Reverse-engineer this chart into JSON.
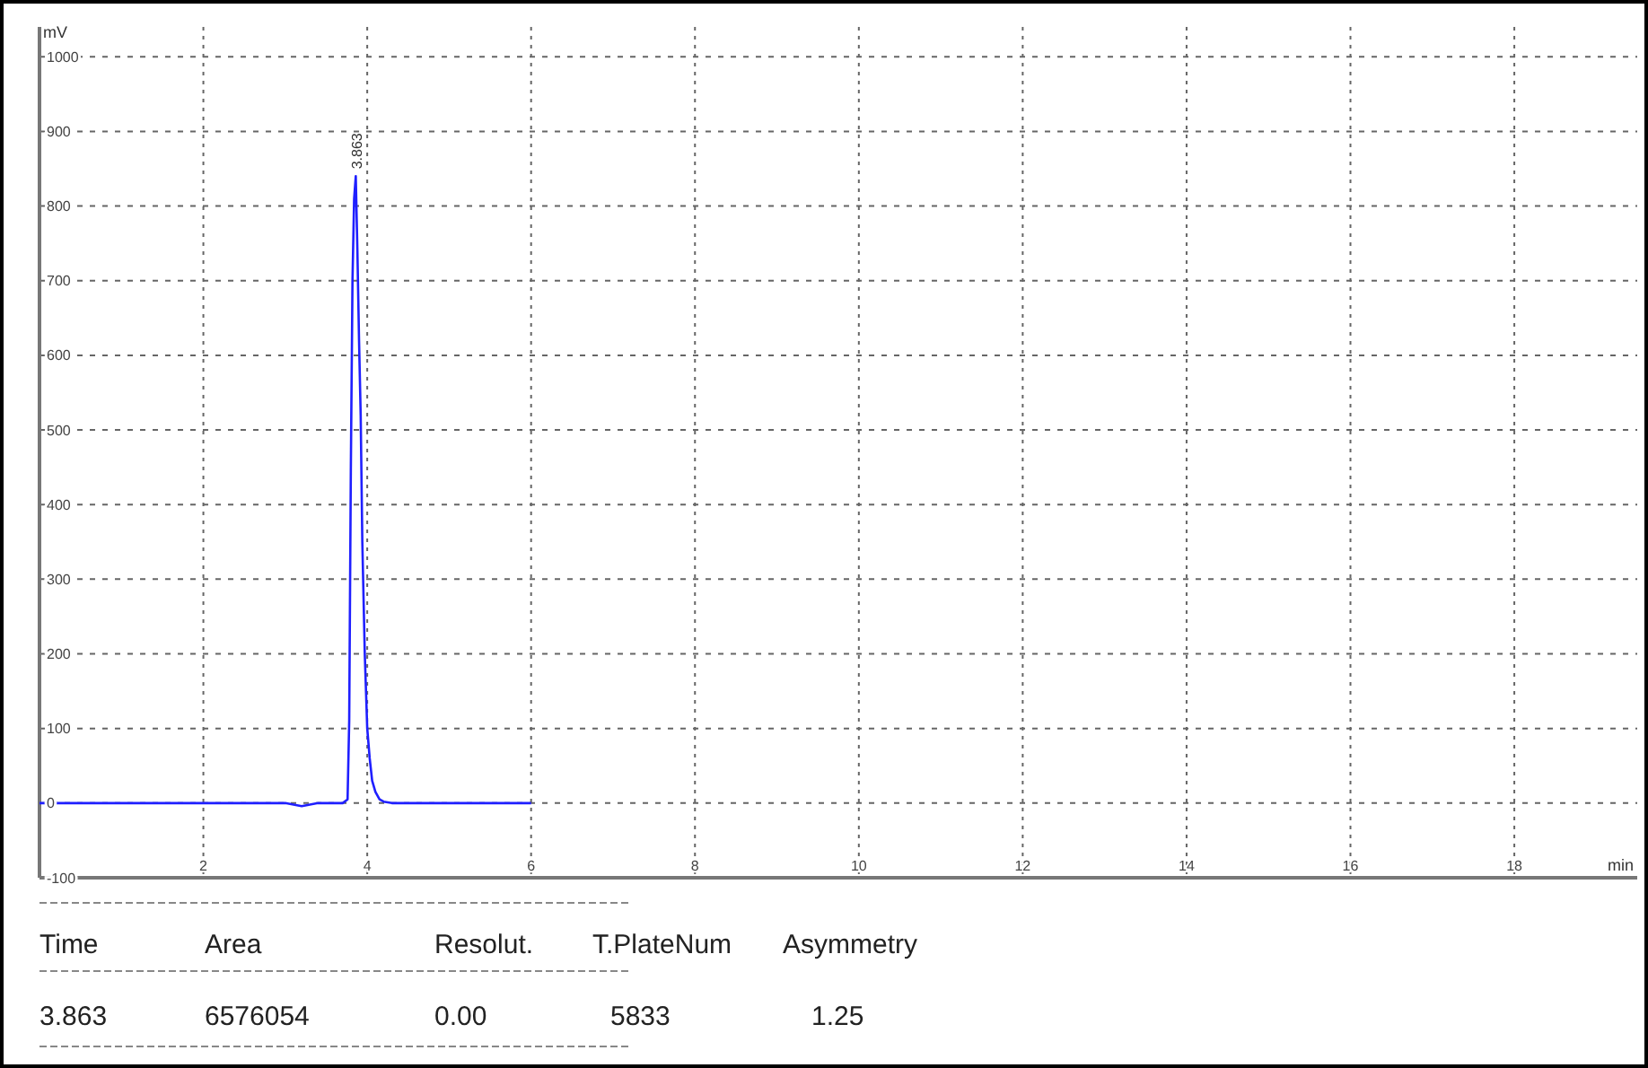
{
  "chart_data": {
    "type": "line",
    "xlabel": "min",
    "ylabel": "mV",
    "x": [
      0,
      1,
      2,
      3,
      3.2,
      3.4,
      3.7,
      3.76,
      3.78,
      3.8,
      3.82,
      3.84,
      3.86,
      3.88,
      3.9,
      3.92,
      3.94,
      3.97,
      4.0,
      4.03,
      4.06,
      4.1,
      4.15,
      4.2,
      4.3,
      5,
      6
    ],
    "series": [
      {
        "color": "#1f1fff",
        "values": [
          0,
          0,
          0,
          0,
          -4,
          0,
          0,
          5,
          110,
          450,
          700,
          810,
          840,
          740,
          620,
          520,
          350,
          200,
          100,
          60,
          30,
          15,
          5,
          2,
          0,
          0,
          0
        ]
      }
    ],
    "xlim": [
      0,
      19.5
    ],
    "xticks": [
      2,
      4,
      6,
      8,
      10,
      12,
      14,
      16,
      18
    ],
    "ylim": [
      -100,
      1040
    ],
    "yticks": [
      -100,
      0,
      100,
      200,
      300,
      400,
      500,
      600,
      700,
      800,
      900,
      1000
    ],
    "grid": true,
    "line_style": "solid",
    "marker": "none",
    "annotations": [
      {
        "text": "3.863",
        "x": 3.863,
        "y": 840
      },
      "Time",
      "Area",
      "Resolut.",
      "T.PlateNum",
      "Asymmetry",
      "3.863",
      "6576054",
      "0.00",
      "5833",
      "1.25"
    ]
  }
}
